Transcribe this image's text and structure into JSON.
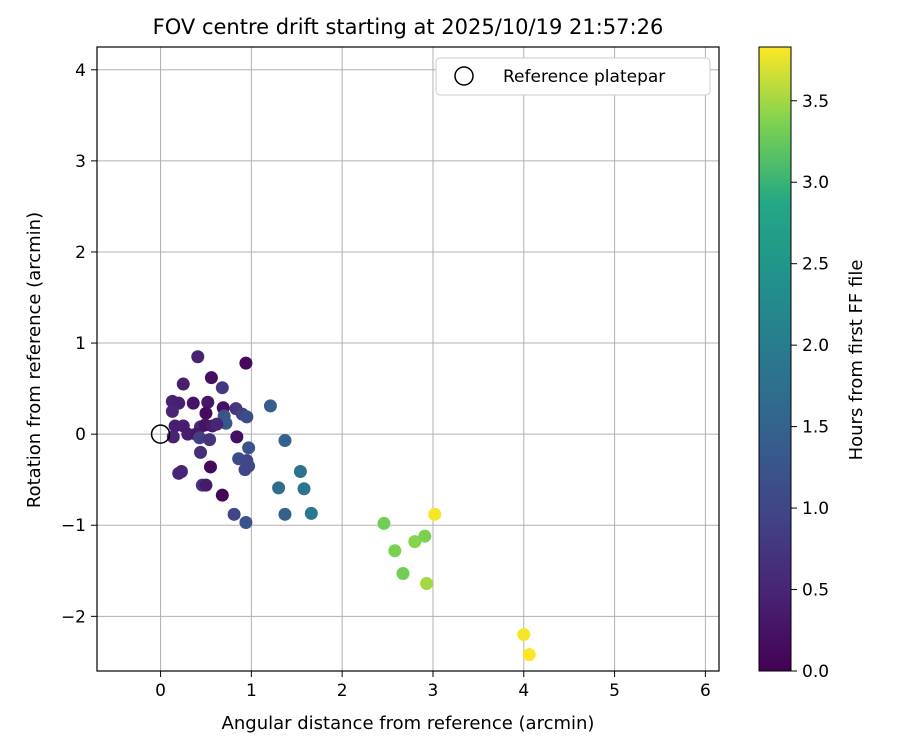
{
  "chart_data": {
    "type": "scatter",
    "title": "FOV centre drift starting at 2025/10/19 21:57:26",
    "xlabel": "Angular distance from reference (arcmin)",
    "ylabel": "Rotation from reference (arcmin)",
    "xlim": [
      -0.7,
      6.15
    ],
    "ylim": [
      -2.6,
      4.25
    ],
    "xticks": [
      0,
      1,
      2,
      3,
      4,
      5,
      6
    ],
    "yticks": [
      -2,
      -1,
      0,
      1,
      2,
      3,
      4
    ],
    "grid": true,
    "legend": {
      "position": "top-right",
      "entries": [
        "Reference platepar"
      ]
    },
    "reference_point": {
      "x": 0,
      "y": 0
    },
    "colorbar": {
      "label": "Hours from first FF file",
      "range": [
        0,
        3.83
      ],
      "ticks": [
        0.0,
        0.5,
        1.0,
        1.5,
        2.0,
        2.5,
        3.0,
        3.5
      ],
      "colormap": "viridis"
    },
    "points": [
      {
        "x": 0.41,
        "y": 0.85,
        "c": 0.45
      },
      {
        "x": 0.94,
        "y": 0.78,
        "c": 0.1
      },
      {
        "x": 0.56,
        "y": 0.62,
        "c": 0.18
      },
      {
        "x": 0.25,
        "y": 0.55,
        "c": 0.4
      },
      {
        "x": 0.68,
        "y": 0.51,
        "c": 0.8
      },
      {
        "x": 0.13,
        "y": 0.36,
        "c": 0.45
      },
      {
        "x": 0.2,
        "y": 0.34,
        "c": 0.42
      },
      {
        "x": 0.36,
        "y": 0.34,
        "c": 0.25
      },
      {
        "x": 0.52,
        "y": 0.35,
        "c": 0.3
      },
      {
        "x": 0.69,
        "y": 0.29,
        "c": 0.2
      },
      {
        "x": 0.83,
        "y": 0.28,
        "c": 0.75
      },
      {
        "x": 0.9,
        "y": 0.22,
        "c": 0.9
      },
      {
        "x": 0.95,
        "y": 0.19,
        "c": 1.1
      },
      {
        "x": 1.21,
        "y": 0.31,
        "c": 1.4
      },
      {
        "x": 0.13,
        "y": 0.25,
        "c": 0.5
      },
      {
        "x": 0.5,
        "y": 0.23,
        "c": 0.15
      },
      {
        "x": 0.7,
        "y": 0.2,
        "c": 1.2
      },
      {
        "x": 0.72,
        "y": 0.12,
        "c": 1.3
      },
      {
        "x": 0.16,
        "y": 0.09,
        "c": 0.4
      },
      {
        "x": 0.25,
        "y": 0.09,
        "c": 0.4
      },
      {
        "x": 0.44,
        "y": 0.08,
        "c": 0.55
      },
      {
        "x": 0.49,
        "y": 0.1,
        "c": 0.25
      },
      {
        "x": 0.57,
        "y": 0.09,
        "c": 0.35
      },
      {
        "x": 0.62,
        "y": 0.11,
        "c": 0.5
      },
      {
        "x": 0.14,
        "y": -0.03,
        "c": 0.45
      },
      {
        "x": 0.3,
        "y": 0.0,
        "c": 0.4
      },
      {
        "x": 0.39,
        "y": 0.0,
        "c": 0.3
      },
      {
        "x": 0.43,
        "y": -0.04,
        "c": 0.9
      },
      {
        "x": 0.54,
        "y": -0.06,
        "c": 0.7
      },
      {
        "x": 0.84,
        "y": -0.03,
        "c": 0.2
      },
      {
        "x": 0.97,
        "y": -0.15,
        "c": 1.2
      },
      {
        "x": 1.37,
        "y": -0.07,
        "c": 1.5
      },
      {
        "x": 0.44,
        "y": -0.2,
        "c": 0.65
      },
      {
        "x": 0.86,
        "y": -0.27,
        "c": 1.1
      },
      {
        "x": 0.95,
        "y": -0.29,
        "c": 1.0
      },
      {
        "x": 0.97,
        "y": -0.35,
        "c": 1.1
      },
      {
        "x": 0.93,
        "y": -0.39,
        "c": 1.0
      },
      {
        "x": 0.55,
        "y": -0.36,
        "c": 0.1
      },
      {
        "x": 0.23,
        "y": -0.41,
        "c": 0.5
      },
      {
        "x": 0.2,
        "y": -0.43,
        "c": 0.5
      },
      {
        "x": 0.46,
        "y": -0.56,
        "c": 0.7
      },
      {
        "x": 0.5,
        "y": -0.56,
        "c": 0.35
      },
      {
        "x": 0.68,
        "y": -0.67,
        "c": 0.05
      },
      {
        "x": 0.81,
        "y": -0.88,
        "c": 1.0
      },
      {
        "x": 0.94,
        "y": -0.97,
        "c": 1.2
      },
      {
        "x": 1.3,
        "y": -0.59,
        "c": 1.75
      },
      {
        "x": 1.37,
        "y": -0.88,
        "c": 1.5
      },
      {
        "x": 1.54,
        "y": -0.41,
        "c": 1.8
      },
      {
        "x": 1.58,
        "y": -0.6,
        "c": 1.85
      },
      {
        "x": 1.66,
        "y": -0.87,
        "c": 1.9
      },
      {
        "x": 2.46,
        "y": -0.98,
        "c": 3.3
      },
      {
        "x": 2.58,
        "y": -1.28,
        "c": 3.35
      },
      {
        "x": 2.67,
        "y": -1.53,
        "c": 3.3
      },
      {
        "x": 2.8,
        "y": -1.18,
        "c": 3.4
      },
      {
        "x": 2.91,
        "y": -1.12,
        "c": 3.35
      },
      {
        "x": 2.93,
        "y": -1.64,
        "c": 3.5
      },
      {
        "x": 3.02,
        "y": -0.88,
        "c": 3.8
      },
      {
        "x": 4.0,
        "y": -2.2,
        "c": 3.8
      },
      {
        "x": 4.06,
        "y": -2.42,
        "c": 3.83
      }
    ]
  }
}
